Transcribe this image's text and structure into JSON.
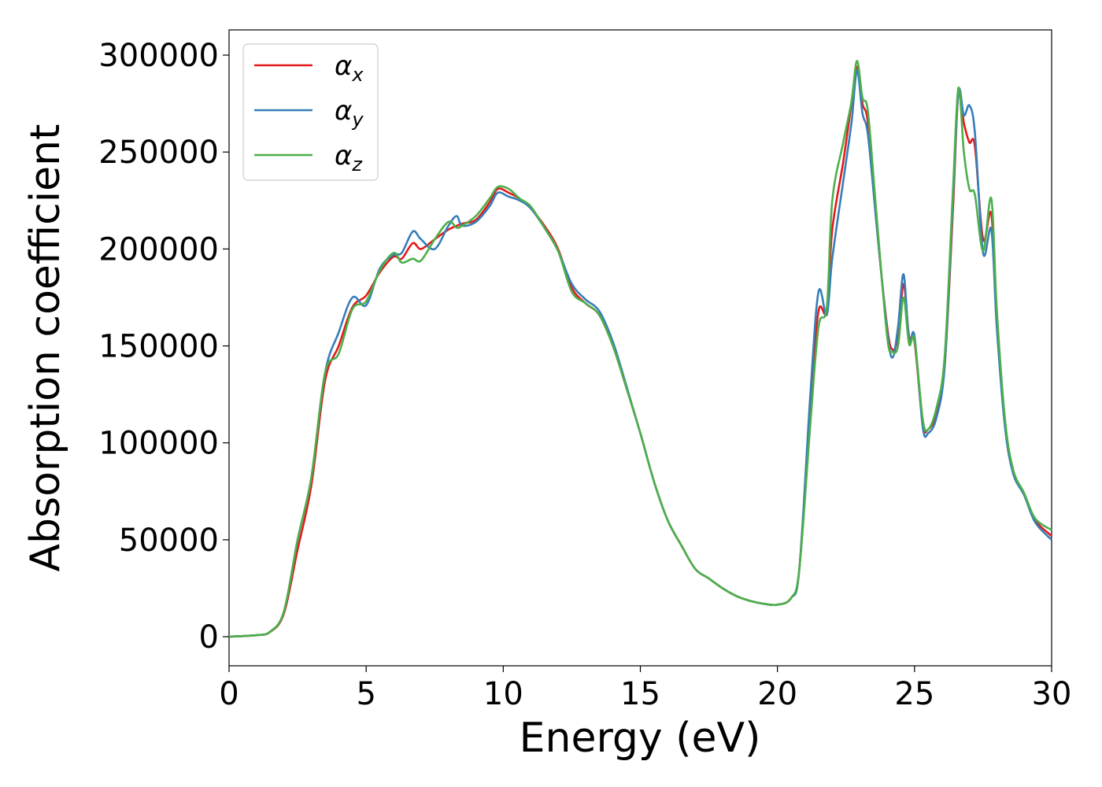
{
  "chart_data": {
    "type": "line",
    "title": "",
    "xlabel": "Energy (eV)",
    "ylabel": "Absorption coefficient",
    "xlim": [
      0,
      30
    ],
    "ylim": [
      -15000,
      313000
    ],
    "xticks": [
      0,
      5,
      10,
      15,
      20,
      25,
      30
    ],
    "yticks": [
      0,
      50000,
      100000,
      150000,
      200000,
      250000,
      300000
    ],
    "grid": false,
    "legend_position": "top-left",
    "series": [
      {
        "name": "αx",
        "symbol": "α",
        "subscript": "x",
        "color": "#e31a1c",
        "points": [
          [
            0,
            0
          ],
          [
            1,
            800
          ],
          [
            1.5,
            2500
          ],
          [
            2,
            12000
          ],
          [
            2.5,
            45000
          ],
          [
            3,
            78000
          ],
          [
            3.5,
            132000
          ],
          [
            4,
            150000
          ],
          [
            4.5,
            170000
          ],
          [
            5,
            176000
          ],
          [
            5.5,
            188000
          ],
          [
            6,
            196000
          ],
          [
            6.3,
            195000
          ],
          [
            6.7,
            203000
          ],
          [
            7,
            200000
          ],
          [
            7.5,
            205000
          ],
          [
            8,
            210000
          ],
          [
            8.5,
            213000
          ],
          [
            9,
            215000
          ],
          [
            9.5,
            224000
          ],
          [
            9.8,
            231000
          ],
          [
            10.2,
            229000
          ],
          [
            10.6,
            226000
          ],
          [
            11,
            221000
          ],
          [
            11.5,
            212000
          ],
          [
            12,
            200000
          ],
          [
            12.5,
            180000
          ],
          [
            13,
            172000
          ],
          [
            13.5,
            166000
          ],
          [
            14,
            150000
          ],
          [
            14.5,
            128000
          ],
          [
            15,
            105000
          ],
          [
            15.5,
            80000
          ],
          [
            16,
            60000
          ],
          [
            16.5,
            47000
          ],
          [
            17,
            35000
          ],
          [
            17.5,
            30000
          ],
          [
            18,
            25000
          ],
          [
            18.5,
            21000
          ],
          [
            19,
            18500
          ],
          [
            19.5,
            17000
          ],
          [
            20,
            16500
          ],
          [
            20.5,
            20000
          ],
          [
            20.8,
            35000
          ],
          [
            21.2,
            120000
          ],
          [
            21.5,
            168000
          ],
          [
            21.8,
            168000
          ],
          [
            22,
            210000
          ],
          [
            22.4,
            245000
          ],
          [
            22.7,
            275000
          ],
          [
            22.9,
            294000
          ],
          [
            23.1,
            275000
          ],
          [
            23.3,
            265000
          ],
          [
            23.6,
            215000
          ],
          [
            24,
            160000
          ],
          [
            24.2,
            148000
          ],
          [
            24.4,
            155000
          ],
          [
            24.6,
            182000
          ],
          [
            24.8,
            155000
          ],
          [
            25,
            152000
          ],
          [
            25.3,
            110000
          ],
          [
            25.5,
            107000
          ],
          [
            25.8,
            115000
          ],
          [
            26.1,
            140000
          ],
          [
            26.4,
            220000
          ],
          [
            26.6,
            281000
          ],
          [
            26.8,
            265000
          ],
          [
            27,
            255000
          ],
          [
            27.2,
            253000
          ],
          [
            27.5,
            205000
          ],
          [
            27.8,
            218000
          ],
          [
            28,
            165000
          ],
          [
            28.3,
            110000
          ],
          [
            28.6,
            85000
          ],
          [
            29,
            73000
          ],
          [
            29.4,
            60000
          ],
          [
            30,
            52000
          ]
        ]
      },
      {
        "name": "αy",
        "symbol": "α",
        "subscript": "y",
        "color": "#377eb8",
        "points": [
          [
            0,
            0
          ],
          [
            1,
            800
          ],
          [
            1.5,
            2600
          ],
          [
            2,
            13000
          ],
          [
            2.5,
            50000
          ],
          [
            3,
            82000
          ],
          [
            3.5,
            136000
          ],
          [
            4,
            157000
          ],
          [
            4.5,
            175000
          ],
          [
            5,
            171000
          ],
          [
            5.5,
            190000
          ],
          [
            6,
            197000
          ],
          [
            6.3,
            198000
          ],
          [
            6.7,
            209000
          ],
          [
            7,
            205000
          ],
          [
            7.5,
            200000
          ],
          [
            8,
            212000
          ],
          [
            8.3,
            217000
          ],
          [
            8.5,
            212000
          ],
          [
            9,
            214000
          ],
          [
            9.5,
            222000
          ],
          [
            9.8,
            229000
          ],
          [
            10.2,
            227000
          ],
          [
            10.6,
            225000
          ],
          [
            11,
            221000
          ],
          [
            11.5,
            211000
          ],
          [
            12,
            199000
          ],
          [
            12.5,
            182000
          ],
          [
            13,
            174000
          ],
          [
            13.5,
            168000
          ],
          [
            14,
            152000
          ],
          [
            14.5,
            129000
          ],
          [
            15,
            105000
          ],
          [
            15.5,
            80000
          ],
          [
            16,
            60000
          ],
          [
            16.5,
            47000
          ],
          [
            17,
            35000
          ],
          [
            17.5,
            30000
          ],
          [
            18,
            25000
          ],
          [
            18.5,
            21000
          ],
          [
            19,
            18500
          ],
          [
            19.5,
            17000
          ],
          [
            20,
            16500
          ],
          [
            20.5,
            20000
          ],
          [
            20.8,
            35000
          ],
          [
            21.2,
            125000
          ],
          [
            21.5,
            178000
          ],
          [
            21.8,
            166000
          ],
          [
            22,
            195000
          ],
          [
            22.4,
            235000
          ],
          [
            22.7,
            265000
          ],
          [
            22.9,
            292000
          ],
          [
            23.1,
            270000
          ],
          [
            23.3,
            259000
          ],
          [
            23.6,
            215000
          ],
          [
            24,
            158000
          ],
          [
            24.2,
            144000
          ],
          [
            24.4,
            160000
          ],
          [
            24.6,
            187000
          ],
          [
            24.8,
            153000
          ],
          [
            25,
            155000
          ],
          [
            25.3,
            108000
          ],
          [
            25.5,
            105000
          ],
          [
            25.8,
            113000
          ],
          [
            26.1,
            140000
          ],
          [
            26.4,
            225000
          ],
          [
            26.6,
            281000
          ],
          [
            26.8,
            269000
          ],
          [
            27,
            274000
          ],
          [
            27.2,
            260000
          ],
          [
            27.5,
            198000
          ],
          [
            27.8,
            210000
          ],
          [
            28,
            160000
          ],
          [
            28.3,
            108000
          ],
          [
            28.6,
            84000
          ],
          [
            29,
            73000
          ],
          [
            29.4,
            59000
          ],
          [
            30,
            50000
          ]
        ]
      },
      {
        "name": "αz",
        "symbol": "α",
        "subscript": "z",
        "color": "#4daf4a",
        "points": [
          [
            0,
            0
          ],
          [
            1,
            800
          ],
          [
            1.5,
            2600
          ],
          [
            2,
            13000
          ],
          [
            2.5,
            50000
          ],
          [
            3,
            82000
          ],
          [
            3.5,
            136000
          ],
          [
            4,
            146000
          ],
          [
            4.5,
            169000
          ],
          [
            5,
            173000
          ],
          [
            5.5,
            189000
          ],
          [
            6,
            198000
          ],
          [
            6.3,
            193000
          ],
          [
            6.7,
            195000
          ],
          [
            7,
            194000
          ],
          [
            7.5,
            205000
          ],
          [
            8,
            214000
          ],
          [
            8.3,
            211000
          ],
          [
            8.5,
            212000
          ],
          [
            9,
            217000
          ],
          [
            9.5,
            226000
          ],
          [
            9.8,
            232000
          ],
          [
            10.2,
            231000
          ],
          [
            10.6,
            226000
          ],
          [
            11,
            222000
          ],
          [
            11.5,
            211000
          ],
          [
            12,
            199000
          ],
          [
            12.5,
            178000
          ],
          [
            13,
            172000
          ],
          [
            13.5,
            166000
          ],
          [
            14,
            150000
          ],
          [
            14.5,
            128000
          ],
          [
            15,
            105000
          ],
          [
            15.5,
            80000
          ],
          [
            16,
            60000
          ],
          [
            16.5,
            47000
          ],
          [
            17,
            35000
          ],
          [
            17.5,
            30000
          ],
          [
            18,
            25000
          ],
          [
            18.5,
            21000
          ],
          [
            19,
            18500
          ],
          [
            19.5,
            17000
          ],
          [
            20,
            16500
          ],
          [
            20.5,
            20000
          ],
          [
            20.8,
            35000
          ],
          [
            21.2,
            110000
          ],
          [
            21.5,
            160000
          ],
          [
            21.8,
            170000
          ],
          [
            22,
            225000
          ],
          [
            22.4,
            255000
          ],
          [
            22.7,
            276000
          ],
          [
            22.9,
            297000
          ],
          [
            23.1,
            278000
          ],
          [
            23.3,
            271000
          ],
          [
            23.6,
            220000
          ],
          [
            24,
            155000
          ],
          [
            24.2,
            147000
          ],
          [
            24.4,
            150000
          ],
          [
            24.6,
            175000
          ],
          [
            24.8,
            151000
          ],
          [
            25,
            153000
          ],
          [
            25.3,
            112000
          ],
          [
            25.5,
            107000
          ],
          [
            25.8,
            118000
          ],
          [
            26.1,
            145000
          ],
          [
            26.4,
            230000
          ],
          [
            26.6,
            283000
          ],
          [
            26.8,
            250000
          ],
          [
            27,
            231000
          ],
          [
            27.2,
            228000
          ],
          [
            27.5,
            199000
          ],
          [
            27.8,
            226000
          ],
          [
            28,
            169000
          ],
          [
            28.3,
            112000
          ],
          [
            28.6,
            86000
          ],
          [
            29,
            74000
          ],
          [
            29.4,
            61000
          ],
          [
            30,
            55000
          ]
        ]
      }
    ]
  }
}
